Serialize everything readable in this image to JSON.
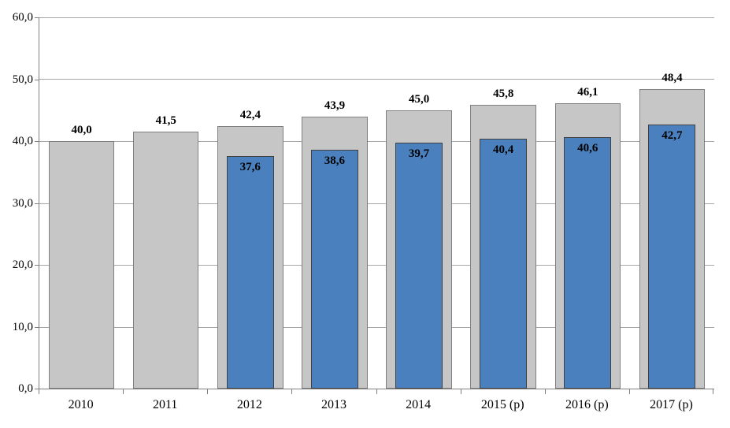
{
  "chart_data": {
    "type": "bar",
    "title": "",
    "xlabel": "",
    "ylabel": "",
    "categories": [
      "2010",
      "2011",
      "2012",
      "2013",
      "2014",
      "2015 (p)",
      "2016 (p)",
      "2017 (p)"
    ],
    "series": [
      {
        "name": "total-gray",
        "values": [
          40.0,
          41.5,
          42.4,
          43.9,
          45.0,
          45.8,
          46.1,
          48.4
        ],
        "labels": [
          "40,0",
          "41,5",
          "42,4",
          "43,9",
          "45,0",
          "45,8",
          "46,1",
          "48,4"
        ],
        "label_position": "above"
      },
      {
        "name": "subset-blue",
        "values": [
          null,
          null,
          37.6,
          38.6,
          39.7,
          40.4,
          40.6,
          42.7
        ],
        "labels": [
          null,
          null,
          "37,6",
          "38,6",
          "39,7",
          "40,4",
          "40,6",
          "42,7"
        ],
        "label_position": "inside-top"
      }
    ],
    "ylim": [
      0,
      60
    ],
    "ytick_step": 10,
    "ytick_labels": [
      "0,0",
      "10,0",
      "20,0",
      "30,0",
      "40,0",
      "50,0",
      "60,0"
    ],
    "grid": true,
    "legend": "none"
  },
  "colors": {
    "total_fill": "#C6C6C6",
    "total_border": "#7F7F7F",
    "subset_fill": "#4A80BD",
    "subset_border": "#404040",
    "gridline": "#A6A6A6",
    "axis": "#808080",
    "text": "#000000",
    "background": "#FFFFFF"
  }
}
